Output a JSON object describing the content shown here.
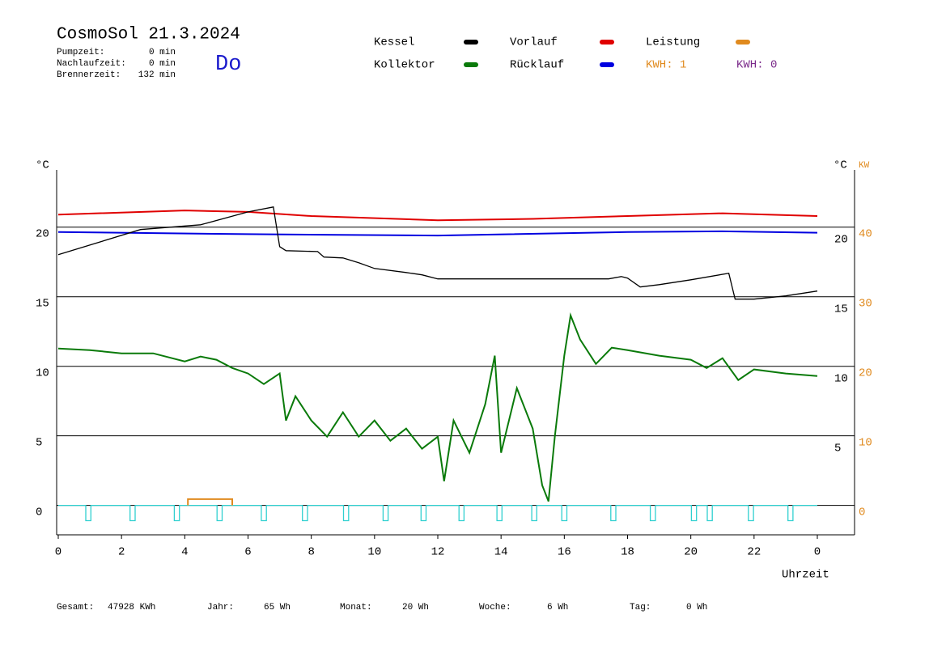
{
  "chart_data": {
    "type": "line",
    "title": "CosmoSol 21.3.2024",
    "day": "Do",
    "info": [
      {
        "label": "Pumpzeit:",
        "value": "0 min"
      },
      {
        "label": "Nachlaufzeit:",
        "value": "0 min"
      },
      {
        "label": "Brennerzeit:",
        "value": "132 min"
      }
    ],
    "kwh_labels": [
      {
        "text": "KWH: 1",
        "color": "#e08a1e"
      },
      {
        "text": "KWH: 0",
        "color": "#7a2a8a"
      }
    ],
    "y_label": "°C",
    "y_label_right": "°C",
    "y2_label": "KW",
    "x_label": "Uhrzeit",
    "xlim": [
      0,
      24
    ],
    "xticks": [
      0,
      2,
      4,
      6,
      8,
      10,
      12,
      14,
      16,
      18,
      20,
      22,
      {
        "value": 24,
        "label": "0"
      }
    ],
    "ylim": [
      -2,
      24
    ],
    "yticks": [
      0,
      5,
      10,
      15,
      20
    ],
    "yticks_right": [
      5,
      10,
      15,
      20
    ],
    "y2lim": [
      -4,
      48
    ],
    "y2ticks": [
      0,
      10,
      20,
      30,
      40
    ],
    "grid": true,
    "series": [
      {
        "name": "Kessel",
        "color": "#000000",
        "x": [
          0,
          2.6,
          4.5,
          6,
          6.8,
          7.0,
          7.2,
          8.2,
          8.4,
          9,
          9.5,
          10,
          11,
          11.5,
          12,
          17.4,
          17.8,
          18,
          18.4,
          19,
          20,
          21.2,
          21.4,
          22,
          23,
          24
        ],
        "values": [
          18.02,
          19.83,
          20.17,
          21.1,
          21.45,
          18.6,
          18.31,
          18.25,
          17.85,
          17.79,
          17.44,
          17.03,
          16.74,
          16.57,
          16.28,
          16.28,
          16.45,
          16.34,
          15.7,
          15.87,
          16.22,
          16.69,
          14.83,
          14.83,
          15.06,
          15.41
        ]
      },
      {
        "name": "Kollektor",
        "color": "#0a7a0a",
        "x": [
          0,
          1,
          2,
          3,
          4,
          4.5,
          5,
          5.5,
          6,
          6.5,
          7,
          7.2,
          7.5,
          8,
          8.5,
          9,
          9.5,
          10,
          10.5,
          11,
          11.5,
          12,
          12.2,
          12.5,
          13,
          13.5,
          13.8,
          14,
          14.5,
          15,
          15.3,
          15.5,
          15.7,
          16,
          16.2,
          16.5,
          17,
          17.5,
          18,
          19,
          20,
          20.5,
          21,
          21.5,
          22,
          23,
          24
        ],
        "values": [
          11.28,
          11.16,
          10.93,
          10.93,
          10.35,
          10.7,
          10.47,
          9.88,
          9.48,
          8.72,
          9.48,
          6.1,
          7.85,
          6.1,
          4.94,
          6.69,
          4.94,
          6.1,
          4.65,
          5.52,
          4.07,
          4.94,
          1.74,
          6.1,
          3.78,
          7.27,
          10.76,
          3.78,
          8.43,
          5.52,
          1.45,
          0.29,
          4.94,
          10.76,
          13.66,
          11.92,
          10.17,
          11.34,
          11.16,
          10.76,
          10.47,
          9.88,
          10.58,
          9.01,
          9.77,
          9.48,
          9.3
        ]
      },
      {
        "name": "Vorlauf",
        "color": "#e00000",
        "x": [
          0,
          4,
          6,
          8,
          12,
          15,
          18,
          21,
          24
        ],
        "values": [
          20.9,
          21.2,
          21.1,
          20.8,
          20.5,
          20.6,
          20.8,
          21.0,
          20.8
        ]
      },
      {
        "name": "Rücklauf",
        "color": "#0000e0",
        "x": [
          0,
          6,
          12,
          18,
          21,
          24
        ],
        "values": [
          19.65,
          19.5,
          19.4,
          19.65,
          19.7,
          19.6
        ]
      },
      {
        "name": "Leistung",
        "color": "#e08a1e",
        "axis": "y2",
        "x": [
          4.1,
          4.1,
          5.5,
          5.5
        ],
        "values": [
          0,
          0.9,
          0.9,
          0
        ]
      },
      {
        "color": "#30d0d0",
        "x": [
          0,
          0.87,
          0.87,
          1.03,
          1.03,
          2.27,
          2.27,
          2.43,
          2.43,
          3.67,
          3.67,
          3.83,
          3.83,
          5.02,
          5.02,
          5.18,
          5.18,
          6.42,
          6.42,
          6.58,
          6.58,
          7.72,
          7.72,
          7.88,
          7.88,
          9.02,
          9.02,
          9.18,
          9.18,
          10.27,
          10.27,
          10.43,
          10.43,
          11.47,
          11.47,
          11.63,
          11.63,
          12.67,
          12.67,
          12.83,
          12.83,
          13.87,
          13.87,
          14.03,
          14.03,
          14.97,
          14.97,
          15.13,
          15.13,
          15.92,
          15.92,
          16.08,
          16.08,
          17.47,
          17.47,
          17.63,
          17.63,
          18.72,
          18.72,
          18.88,
          18.88,
          20.02,
          20.02,
          20.18,
          20.18,
          20.52,
          20.52,
          20.68,
          20.68,
          21.82,
          21.82,
          21.98,
          21.98,
          23.07,
          23.07,
          23.23,
          23.23,
          24
        ],
        "values": [
          0,
          0,
          -1.1,
          -1.1,
          0,
          0,
          -1.1,
          -1.1,
          0,
          0,
          -1.1,
          -1.1,
          0,
          0,
          -1.1,
          -1.1,
          0,
          0,
          -1.1,
          -1.1,
          0,
          0,
          -1.1,
          -1.1,
          0,
          0,
          -1.1,
          -1.1,
          0,
          0,
          -1.1,
          -1.1,
          0,
          0,
          -1.1,
          -1.1,
          0,
          0,
          -1.1,
          -1.1,
          0,
          0,
          -1.1,
          -1.1,
          0,
          0,
          -1.1,
          -1.1,
          0,
          0,
          -1.1,
          -1.1,
          0,
          0,
          -1.1,
          -1.1,
          0,
          0,
          -1.1,
          -1.1,
          0,
          0,
          -1.1,
          -1.1,
          0,
          0,
          -1.1,
          -1.1,
          0,
          0,
          -1.1,
          -1.1,
          0,
          0,
          -1.1,
          -1.1,
          0,
          0
        ]
      }
    ],
    "footer": [
      {
        "label": "Gesamt:",
        "value": "47928 KWh"
      },
      {
        "label": "Jahr:",
        "value": "65 Wh"
      },
      {
        "label": "Monat:",
        "value": "20 Wh"
      },
      {
        "label": "Woche:",
        "value": "6 Wh"
      },
      {
        "label": "Tag:",
        "value": "0 Wh"
      }
    ]
  }
}
